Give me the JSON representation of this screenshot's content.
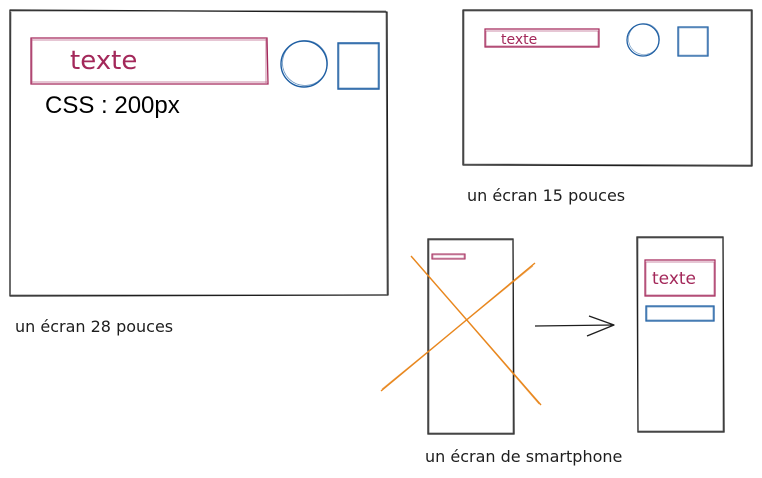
{
  "large_screen": {
    "field_text": "texte",
    "css_note": "CSS : 200px",
    "caption": "un écran 28 pouces"
  },
  "medium_screen": {
    "field_text": "texte",
    "caption": "un écran 15 pouces"
  },
  "smartphone": {
    "fixed_field_text": "",
    "responsive_field_text": "texte",
    "caption": "un écran de smartphone"
  },
  "colors": {
    "frame": "#1e1e1e",
    "field": "#a3285a",
    "circle": "#1f5fa3",
    "square": "#1f5fa3",
    "cross": "#e8871e"
  }
}
